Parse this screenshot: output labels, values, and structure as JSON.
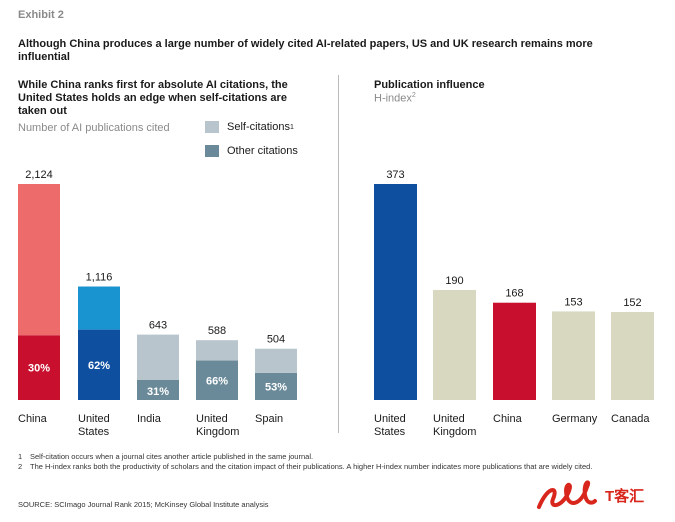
{
  "exhibit_label": "Exhibit 2",
  "headline": "Although China produces a large number of widely cited AI-related papers, US and UK research remains more influential",
  "left_panel": {
    "title": "While China ranks first for absolute AI citations, the United States holds an edge when self-citations are taken out",
    "subtitle": "Number of AI publications cited",
    "legend": [
      {
        "label": "Self-citations",
        "sup": "1"
      },
      {
        "label": "Other citations",
        "sup": ""
      }
    ]
  },
  "right_panel": {
    "title": "Publication influence",
    "subtitle": "H-index",
    "subtitle_sup": "2"
  },
  "chart_data": [
    {
      "type": "bar",
      "stacked": true,
      "title": "While China ranks first for absolute AI citations, the United States holds an edge when self-citations are taken out",
      "ylabel": "Number of AI publications cited",
      "categories": [
        "China",
        "United States",
        "India",
        "United Kingdom",
        "Spain"
      ],
      "totals": [
        2124,
        1116,
        643,
        588,
        504
      ],
      "total_labels": [
        "2,124",
        "1,116",
        "643",
        "588",
        "504"
      ],
      "segment_labels": [
        "30%",
        "62%",
        "31%",
        "66%",
        "53%"
      ],
      "series": [
        {
          "name": "Self-citations",
          "values": [
            1487,
            424,
            444,
            200,
            237
          ]
        },
        {
          "name": "Other citations",
          "values": [
            637,
            692,
            199,
            388,
            267
          ]
        }
      ],
      "ylim": [
        0,
        2124
      ],
      "colors": {
        "china_self": "#ee6b6b",
        "china_other": "#c8102e",
        "us_self": "#1a93d1",
        "us_other": "#0f4f9f",
        "self": "#b8c5cc",
        "other": "#6b8a99"
      }
    },
    {
      "type": "bar",
      "title": "Publication influence",
      "ylabel": "H-index",
      "categories": [
        "United States",
        "United Kingdom",
        "China",
        "Germany",
        "Canada"
      ],
      "values": [
        373,
        190,
        168,
        153,
        152
      ],
      "ylim": [
        0,
        373
      ],
      "colors": [
        "#0f4f9f",
        "#d8d8c0",
        "#c8102e",
        "#d8d8c0",
        "#d8d8c0"
      ]
    }
  ],
  "footnotes": [
    {
      "num": "1",
      "text": "Self-citation occurs when a journal cites another article published in the same journal."
    },
    {
      "num": "2",
      "text": "The H-index ranks both the productivity of scholars and the citation impact of their publications. A higher H-index number indicates more publications that are widely cited."
    }
  ],
  "source": "SOURCE: SCImago Journal Rank 2015; McKinsey Global Institute analysis",
  "watermark": {
    "text": "T客汇",
    "color": "#d9261c"
  }
}
